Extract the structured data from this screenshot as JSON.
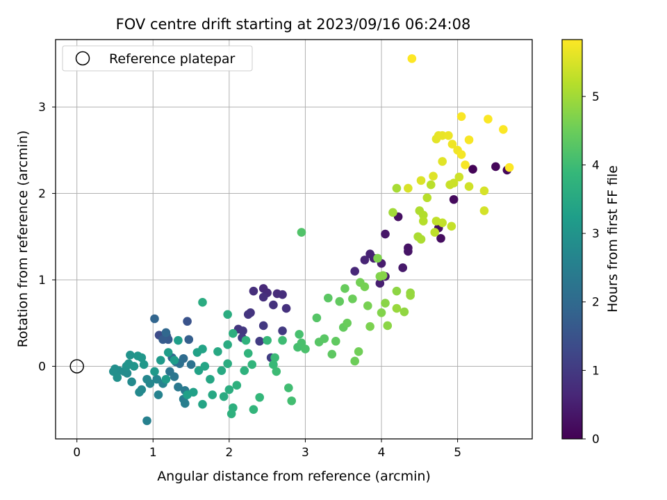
{
  "chart_data": {
    "type": "scatter",
    "title": "FOV centre drift starting at 2023/09/16 06:24:08",
    "xlabel": "Angular distance from reference (arcmin)",
    "ylabel": "Rotation from reference (arcmin)",
    "xlim": [
      -0.28,
      5.98
    ],
    "ylim": [
      -0.84,
      3.78
    ],
    "xticks": [
      0,
      1,
      2,
      3,
      4,
      5
    ],
    "yticks": [
      0,
      1,
      2,
      3
    ],
    "grid": true,
    "legend": {
      "position": "top-left",
      "entries": [
        "Reference platepar"
      ]
    },
    "reference_point": {
      "x": 0,
      "y": 0,
      "label": "Reference platepar"
    },
    "colorbar": {
      "label": "Hours from first FF file",
      "range": [
        0,
        5.83
      ],
      "ticks": [
        0,
        1,
        2,
        3,
        4,
        5
      ],
      "colormap": "viridis",
      "colors": [
        "#440154",
        "#482878",
        "#3e4989",
        "#31688e",
        "#26828e",
        "#1f9e89",
        "#35b779",
        "#6ece58",
        "#b5de2b",
        "#fde725"
      ]
    },
    "points": [
      {
        "x": 5.2,
        "y": 2.28,
        "t": 0.05
      },
      {
        "x": 5.5,
        "y": 2.31,
        "t": 0.1
      },
      {
        "x": 5.65,
        "y": 2.27,
        "t": 0.12
      },
      {
        "x": 4.95,
        "y": 1.93,
        "t": 0.15
      },
      {
        "x": 4.78,
        "y": 1.48,
        "t": 0.2
      },
      {
        "x": 4.75,
        "y": 1.6,
        "t": 0.22
      },
      {
        "x": 4.22,
        "y": 1.73,
        "t": 0.25
      },
      {
        "x": 4.35,
        "y": 1.37,
        "t": 0.3
      },
      {
        "x": 4.35,
        "y": 1.33,
        "t": 0.32
      },
      {
        "x": 4.05,
        "y": 1.53,
        "t": 0.35
      },
      {
        "x": 4.05,
        "y": 1.04,
        "t": 0.4
      },
      {
        "x": 4.28,
        "y": 1.14,
        "t": 0.42
      },
      {
        "x": 4.0,
        "y": 1.19,
        "t": 0.45
      },
      {
        "x": 3.98,
        "y": 0.96,
        "t": 0.5
      },
      {
        "x": 3.9,
        "y": 1.25,
        "t": 0.52
      },
      {
        "x": 3.85,
        "y": 1.3,
        "t": 0.55
      },
      {
        "x": 3.78,
        "y": 1.23,
        "t": 0.6
      },
      {
        "x": 3.65,
        "y": 1.1,
        "t": 0.65
      },
      {
        "x": 2.45,
        "y": 0.9,
        "t": 0.68
      },
      {
        "x": 2.5,
        "y": 0.85,
        "t": 0.7
      },
      {
        "x": 2.63,
        "y": 0.84,
        "t": 0.72
      },
      {
        "x": 2.7,
        "y": 0.83,
        "t": 0.75
      },
      {
        "x": 2.32,
        "y": 0.87,
        "t": 0.78
      },
      {
        "x": 2.45,
        "y": 0.8,
        "t": 0.8
      },
      {
        "x": 2.75,
        "y": 0.67,
        "t": 0.82
      },
      {
        "x": 2.58,
        "y": 0.71,
        "t": 0.85
      },
      {
        "x": 2.28,
        "y": 0.62,
        "t": 0.88
      },
      {
        "x": 2.25,
        "y": 0.6,
        "t": 0.9
      },
      {
        "x": 2.12,
        "y": 0.43,
        "t": 0.92
      },
      {
        "x": 2.18,
        "y": 0.41,
        "t": 0.95
      },
      {
        "x": 2.45,
        "y": 0.47,
        "t": 0.98
      },
      {
        "x": 2.7,
        "y": 0.41,
        "t": 1.0
      },
      {
        "x": 2.17,
        "y": 0.33,
        "t": 1.02
      },
      {
        "x": 2.4,
        "y": 0.29,
        "t": 1.05
      },
      {
        "x": 2.55,
        "y": 0.1,
        "t": 1.08
      },
      {
        "x": 1.08,
        "y": 0.36,
        "t": 1.35
      },
      {
        "x": 1.45,
        "y": 0.52,
        "t": 1.5
      },
      {
        "x": 1.18,
        "y": 0.35,
        "t": 1.6
      },
      {
        "x": 1.2,
        "y": 0.31,
        "t": 1.65
      },
      {
        "x": 1.13,
        "y": 0.31,
        "t": 1.7
      },
      {
        "x": 1.47,
        "y": 0.31,
        "t": 1.75
      },
      {
        "x": 1.02,
        "y": 0.55,
        "t": 1.9
      },
      {
        "x": 1.17,
        "y": 0.39,
        "t": 1.95
      },
      {
        "x": 1.25,
        "y": 0.1,
        "t": 2.0
      },
      {
        "x": 1.4,
        "y": 0.09,
        "t": 2.05
      },
      {
        "x": 1.3,
        "y": 0.05,
        "t": 2.1
      },
      {
        "x": 1.35,
        "y": 0.03,
        "t": 2.15
      },
      {
        "x": 1.5,
        "y": 0.02,
        "t": 2.2
      },
      {
        "x": 1.22,
        "y": -0.06,
        "t": 2.25
      },
      {
        "x": 1.28,
        "y": -0.12,
        "t": 2.3
      },
      {
        "x": 1.33,
        "y": -0.24,
        "t": 2.35
      },
      {
        "x": 1.42,
        "y": -0.28,
        "t": 2.4
      },
      {
        "x": 1.4,
        "y": -0.38,
        "t": 2.45
      },
      {
        "x": 1.42,
        "y": -0.43,
        "t": 2.5
      },
      {
        "x": 0.92,
        "y": -0.63,
        "t": 2.55
      },
      {
        "x": 1.07,
        "y": -0.33,
        "t": 2.6
      },
      {
        "x": 1.13,
        "y": -0.2,
        "t": 2.62
      },
      {
        "x": 1.05,
        "y": -0.15,
        "t": 2.65
      },
      {
        "x": 0.96,
        "y": -0.2,
        "t": 2.68
      },
      {
        "x": 0.92,
        "y": -0.15,
        "t": 2.7
      },
      {
        "x": 0.85,
        "y": -0.27,
        "t": 2.72
      },
      {
        "x": 0.82,
        "y": -0.3,
        "t": 2.75
      },
      {
        "x": 0.72,
        "y": -0.18,
        "t": 2.78
      },
      {
        "x": 0.66,
        "y": -0.08,
        "t": 2.8
      },
      {
        "x": 0.62,
        "y": -0.06,
        "t": 2.82
      },
      {
        "x": 0.55,
        "y": -0.05,
        "t": 2.85
      },
      {
        "x": 0.5,
        "y": -0.03,
        "t": 2.88
      },
      {
        "x": 0.48,
        "y": -0.06,
        "t": 2.9
      },
      {
        "x": 0.53,
        "y": -0.13,
        "t": 2.92
      },
      {
        "x": 0.65,
        "y": 0.0,
        "t": 2.95
      },
      {
        "x": 0.7,
        "y": 0.13,
        "t": 2.98
      },
      {
        "x": 0.68,
        "y": 0.03,
        "t": 3.0
      },
      {
        "x": 0.75,
        "y": 0.0,
        "t": 3.02
      },
      {
        "x": 0.8,
        "y": 0.12,
        "t": 3.05
      },
      {
        "x": 0.85,
        "y": 0.1,
        "t": 3.08
      },
      {
        "x": 0.88,
        "y": 0.02,
        "t": 3.1
      },
      {
        "x": 1.02,
        "y": -0.06,
        "t": 3.12
      },
      {
        "x": 1.1,
        "y": 0.07,
        "t": 3.15
      },
      {
        "x": 1.17,
        "y": -0.15,
        "t": 3.18
      },
      {
        "x": 1.2,
        "y": 0.16,
        "t": 3.2
      },
      {
        "x": 1.28,
        "y": 0.07,
        "t": 3.22
      },
      {
        "x": 1.33,
        "y": 0.3,
        "t": 3.25
      },
      {
        "x": 1.45,
        "y": -0.33,
        "t": 3.28
      },
      {
        "x": 1.53,
        "y": -0.3,
        "t": 3.3
      },
      {
        "x": 1.58,
        "y": 0.16,
        "t": 3.32
      },
      {
        "x": 1.6,
        "y": -0.05,
        "t": 3.35
      },
      {
        "x": 1.65,
        "y": 0.2,
        "t": 3.38
      },
      {
        "x": 1.65,
        "y": -0.44,
        "t": 3.4
      },
      {
        "x": 1.68,
        "y": 0.0,
        "t": 3.42
      },
      {
        "x": 1.75,
        "y": -0.15,
        "t": 3.45
      },
      {
        "x": 1.78,
        "y": -0.33,
        "t": 3.48
      },
      {
        "x": 1.85,
        "y": 0.17,
        "t": 3.5
      },
      {
        "x": 1.9,
        "y": -0.05,
        "t": 3.52
      },
      {
        "x": 1.93,
        "y": -0.35,
        "t": 3.55
      },
      {
        "x": 1.98,
        "y": 0.25,
        "t": 3.58
      },
      {
        "x": 1.98,
        "y": 0.03,
        "t": 3.6
      },
      {
        "x": 2.0,
        "y": -0.27,
        "t": 3.62
      },
      {
        "x": 2.05,
        "y": 0.38,
        "t": 3.65
      },
      {
        "x": 2.05,
        "y": -0.48,
        "t": 3.68
      },
      {
        "x": 2.1,
        "y": -0.22,
        "t": 3.7
      },
      {
        "x": 2.2,
        "y": -0.05,
        "t": 3.72
      },
      {
        "x": 2.22,
        "y": 0.3,
        "t": 3.75
      },
      {
        "x": 2.25,
        "y": 0.15,
        "t": 3.78
      },
      {
        "x": 2.3,
        "y": 0.02,
        "t": 3.8
      },
      {
        "x": 2.32,
        "y": -0.5,
        "t": 3.82
      },
      {
        "x": 2.4,
        "y": -0.36,
        "t": 3.85
      },
      {
        "x": 1.65,
        "y": 0.74,
        "t": 3.58
      },
      {
        "x": 1.98,
        "y": 0.6,
        "t": 3.6
      },
      {
        "x": 2.03,
        "y": -0.55,
        "t": 3.7
      },
      {
        "x": 2.5,
        "y": 0.3,
        "t": 3.9
      },
      {
        "x": 2.58,
        "y": 0.02,
        "t": 3.92
      },
      {
        "x": 2.6,
        "y": 0.1,
        "t": 3.95
      },
      {
        "x": 2.62,
        "y": -0.06,
        "t": 3.98
      },
      {
        "x": 2.7,
        "y": 0.3,
        "t": 4.0
      },
      {
        "x": 2.78,
        "y": -0.25,
        "t": 4.02
      },
      {
        "x": 2.82,
        "y": -0.4,
        "t": 4.05
      },
      {
        "x": 2.9,
        "y": 0.22,
        "t": 4.08
      },
      {
        "x": 2.92,
        "y": 0.37,
        "t": 4.1
      },
      {
        "x": 2.95,
        "y": 0.27,
        "t": 4.12
      },
      {
        "x": 3.0,
        "y": 0.2,
        "t": 4.15
      },
      {
        "x": 2.95,
        "y": 1.55,
        "t": 4.2
      },
      {
        "x": 3.15,
        "y": 0.56,
        "t": 4.25
      },
      {
        "x": 3.18,
        "y": 0.28,
        "t": 4.28
      },
      {
        "x": 3.25,
        "y": 0.32,
        "t": 4.3
      },
      {
        "x": 3.3,
        "y": 0.79,
        "t": 4.32
      },
      {
        "x": 3.35,
        "y": 0.14,
        "t": 4.35
      },
      {
        "x": 3.4,
        "y": 0.29,
        "t": 4.38
      },
      {
        "x": 3.45,
        "y": 0.75,
        "t": 4.4
      },
      {
        "x": 3.5,
        "y": 0.45,
        "t": 4.42
      },
      {
        "x": 3.52,
        "y": 0.9,
        "t": 4.45
      },
      {
        "x": 3.55,
        "y": 0.5,
        "t": 4.48
      },
      {
        "x": 3.62,
        "y": 0.78,
        "t": 4.5
      },
      {
        "x": 3.65,
        "y": 0.06,
        "t": 4.52
      },
      {
        "x": 3.7,
        "y": 0.17,
        "t": 4.55
      },
      {
        "x": 3.72,
        "y": 0.97,
        "t": 4.58
      },
      {
        "x": 3.78,
        "y": 0.92,
        "t": 4.6
      },
      {
        "x": 3.82,
        "y": 0.7,
        "t": 4.62
      },
      {
        "x": 3.85,
        "y": 0.46,
        "t": 4.65
      },
      {
        "x": 3.95,
        "y": 1.25,
        "t": 4.68
      },
      {
        "x": 3.98,
        "y": 1.04,
        "t": 4.7
      },
      {
        "x": 4.0,
        "y": 0.62,
        "t": 4.72
      },
      {
        "x": 4.02,
        "y": 1.05,
        "t": 4.75
      },
      {
        "x": 4.05,
        "y": 0.73,
        "t": 4.78
      },
      {
        "x": 4.08,
        "y": 0.47,
        "t": 4.8
      },
      {
        "x": 4.2,
        "y": 0.87,
        "t": 4.82
      },
      {
        "x": 4.3,
        "y": 0.63,
        "t": 4.85
      },
      {
        "x": 4.38,
        "y": 0.85,
        "t": 4.88
      },
      {
        "x": 4.38,
        "y": 0.82,
        "t": 4.9
      },
      {
        "x": 4.2,
        "y": 0.67,
        "t": 4.92
      },
      {
        "x": 4.15,
        "y": 1.78,
        "t": 5.0
      },
      {
        "x": 4.2,
        "y": 2.06,
        "t": 5.05
      },
      {
        "x": 4.48,
        "y": 1.5,
        "t": 5.08
      },
      {
        "x": 4.52,
        "y": 1.47,
        "t": 5.1
      },
      {
        "x": 4.5,
        "y": 1.8,
        "t": 5.12
      },
      {
        "x": 4.55,
        "y": 1.75,
        "t": 5.15
      },
      {
        "x": 4.55,
        "y": 1.68,
        "t": 5.18
      },
      {
        "x": 4.6,
        "y": 1.95,
        "t": 5.2
      },
      {
        "x": 4.65,
        "y": 2.1,
        "t": 5.22
      },
      {
        "x": 4.7,
        "y": 1.55,
        "t": 5.25
      },
      {
        "x": 4.72,
        "y": 1.68,
        "t": 5.28
      },
      {
        "x": 4.8,
        "y": 1.66,
        "t": 5.3
      },
      {
        "x": 4.92,
        "y": 1.62,
        "t": 5.32
      },
      {
        "x": 4.9,
        "y": 2.1,
        "t": 5.35
      },
      {
        "x": 4.95,
        "y": 2.12,
        "t": 5.38
      },
      {
        "x": 5.02,
        "y": 2.19,
        "t": 5.4
      },
      {
        "x": 5.15,
        "y": 2.08,
        "t": 5.42
      },
      {
        "x": 5.35,
        "y": 1.8,
        "t": 5.45
      },
      {
        "x": 5.35,
        "y": 2.03,
        "t": 5.48
      },
      {
        "x": 4.35,
        "y": 2.06,
        "t": 5.5
      },
      {
        "x": 4.52,
        "y": 2.15,
        "t": 5.52
      },
      {
        "x": 4.68,
        "y": 2.2,
        "t": 5.55
      },
      {
        "x": 4.8,
        "y": 2.37,
        "t": 5.58
      },
      {
        "x": 4.72,
        "y": 2.63,
        "t": 5.6
      },
      {
        "x": 4.75,
        "y": 2.67,
        "t": 5.62
      },
      {
        "x": 4.8,
        "y": 2.67,
        "t": 5.65
      },
      {
        "x": 4.88,
        "y": 2.67,
        "t": 5.68
      },
      {
        "x": 4.93,
        "y": 2.57,
        "t": 5.7
      },
      {
        "x": 5.0,
        "y": 2.5,
        "t": 5.72
      },
      {
        "x": 5.05,
        "y": 2.45,
        "t": 5.75
      },
      {
        "x": 5.1,
        "y": 2.33,
        "t": 5.77
      },
      {
        "x": 5.15,
        "y": 2.62,
        "t": 5.78
      },
      {
        "x": 5.05,
        "y": 2.89,
        "t": 5.79
      },
      {
        "x": 5.4,
        "y": 2.86,
        "t": 5.8
      },
      {
        "x": 5.6,
        "y": 2.74,
        "t": 5.81
      },
      {
        "x": 5.68,
        "y": 2.3,
        "t": 5.82
      },
      {
        "x": 4.4,
        "y": 3.56,
        "t": 5.83
      }
    ]
  }
}
